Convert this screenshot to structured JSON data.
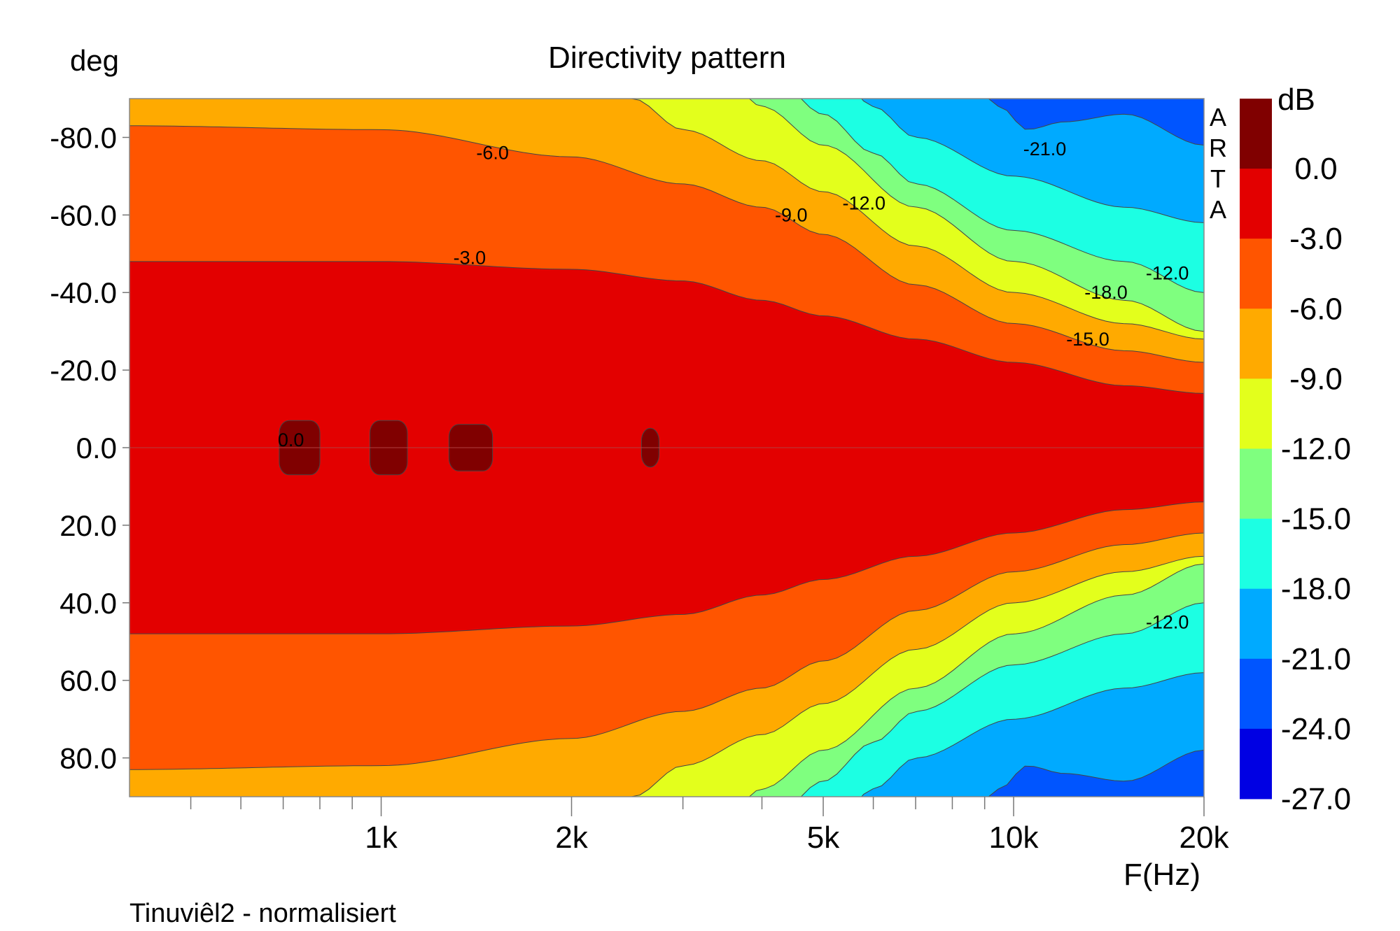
{
  "chart_data": {
    "type": "heatmap",
    "title": "Directivity pattern",
    "subtitle": "Tinuviêl2 - normalisiert",
    "ylabel": "deg",
    "xlabel": "F(Hz)",
    "colorbar_label": "dB",
    "watermark": [
      "A",
      "R",
      "T",
      "A"
    ],
    "x_scale": "log",
    "xlim": [
      400,
      20000
    ],
    "ylim": [
      -90,
      90
    ],
    "y_inverted": true,
    "x_ticks": [
      {
        "value": 1000,
        "label": "1k"
      },
      {
        "value": 2000,
        "label": "2k"
      },
      {
        "value": 5000,
        "label": "5k"
      },
      {
        "value": 10000,
        "label": "10k"
      },
      {
        "value": 20000,
        "label": "20k"
      }
    ],
    "x_minor_ticks": [
      500,
      600,
      700,
      800,
      900,
      3000,
      4000,
      6000,
      7000,
      8000,
      9000
    ],
    "y_ticks": [
      {
        "value": -80,
        "label": "-80.0"
      },
      {
        "value": -60,
        "label": "-60.0"
      },
      {
        "value": -40,
        "label": "-40.0"
      },
      {
        "value": -20,
        "label": "-20.0"
      },
      {
        "value": 0,
        "label": "0.0"
      },
      {
        "value": 20,
        "label": "20.0"
      },
      {
        "value": 40,
        "label": "40.0"
      },
      {
        "value": 60,
        "label": "60.0"
      },
      {
        "value": 80,
        "label": "80.0"
      }
    ],
    "levels": [
      {
        "min": 0,
        "label": "0.0",
        "color": "#800000"
      },
      {
        "min": -3,
        "label": "-3.0",
        "color": "#e30000"
      },
      {
        "min": -6,
        "label": "-6.0",
        "color": "#ff5500"
      },
      {
        "min": -9,
        "label": "-9.0",
        "color": "#ffaa00"
      },
      {
        "min": -12,
        "label": "-12.0",
        "color": "#e3ff1c"
      },
      {
        "min": -15,
        "label": "-15.0",
        "color": "#7fff7f"
      },
      {
        "min": -18,
        "label": "-18.0",
        "color": "#1cffe3"
      },
      {
        "min": -21,
        "label": "-21.0",
        "color": "#00aaff"
      },
      {
        "min": -24,
        "label": "-24.0",
        "color": "#0055ff"
      },
      {
        "min": -27,
        "label": "-27.0",
        "color": "#0000e3"
      }
    ],
    "colorbar_max_label": "",
    "boundaries": {
      "minus3": {
        "f": [
          400,
          1000,
          2000,
          3000,
          4000,
          5000,
          7000,
          10000,
          15000,
          20000
        ],
        "deg": [
          48,
          48,
          46,
          43,
          38,
          34,
          28,
          22,
          16,
          14
        ]
      },
      "minus6": {
        "f": [
          400,
          1000,
          2000,
          3000,
          4000,
          5000,
          7000,
          10000,
          15000,
          20000
        ],
        "deg": [
          83,
          82,
          75,
          68,
          62,
          55,
          42,
          32,
          25,
          22
        ]
      },
      "minus9": {
        "f": [
          400,
          1000,
          2000,
          2500,
          3000,
          4000,
          5000,
          7000,
          10000,
          15000,
          20000
        ],
        "deg": [
          95,
          95,
          95,
          90,
          82,
          74,
          66,
          52,
          40,
          32,
          28
        ]
      },
      "minus12": {
        "f": [
          400,
          3500,
          4000,
          5000,
          7000,
          10000,
          15000,
          20000
        ],
        "deg": [
          95,
          95,
          88,
          78,
          62,
          48,
          38,
          30
        ]
      },
      "minus15": {
        "f": [
          400,
          4200,
          5000,
          6000,
          7000,
          10000,
          15000,
          20000
        ],
        "deg": [
          95,
          95,
          86,
          76,
          68,
          56,
          48,
          40
        ]
      },
      "minus18": {
        "f": [
          400,
          5300,
          6000,
          7000,
          10000,
          15000,
          20000
        ],
        "deg": [
          95,
          95,
          88,
          80,
          70,
          62,
          58
        ]
      },
      "minus21": {
        "f": [
          400,
          8500,
          9500,
          10500,
          12000,
          15000,
          20000
        ],
        "deg": [
          95,
          95,
          88,
          82,
          84,
          86,
          78
        ]
      }
    },
    "zero_db_islands": [
      {
        "f_from": 690,
        "f_to": 800,
        "deg_half": 7
      },
      {
        "f_from": 960,
        "f_to": 1100,
        "deg_half": 7
      },
      {
        "f_from": 1280,
        "f_to": 1500,
        "deg_half": 6
      },
      {
        "f_from": 2580,
        "f_to": 2750,
        "deg_half": 5
      }
    ],
    "annotations": [
      {
        "text": "-6.0",
        "f": 1500,
        "deg": -76
      },
      {
        "text": "-3.0",
        "f": 1380,
        "deg": -49
      },
      {
        "text": "0.0",
        "f": 720,
        "deg": -2
      },
      {
        "text": "-9.0",
        "f": 4450,
        "deg": -60
      },
      {
        "text": "-12.0",
        "f": 5800,
        "deg": -63
      },
      {
        "text": "-21.0",
        "f": 11200,
        "deg": -77
      },
      {
        "text": "-18.0",
        "f": 14000,
        "deg": -40
      },
      {
        "text": "-12.0",
        "f": 17500,
        "deg": -45
      },
      {
        "text": "-15.0",
        "f": 13100,
        "deg": -28
      },
      {
        "text": "-12.0",
        "f": 17500,
        "deg": 45
      }
    ]
  }
}
